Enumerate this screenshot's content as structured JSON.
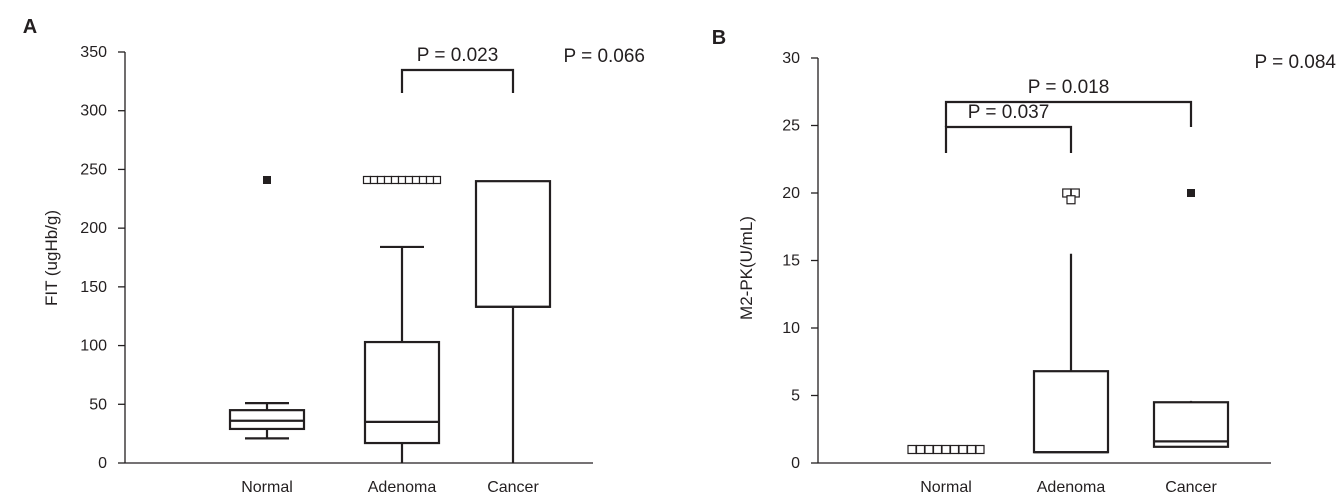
{
  "chart_data": [
    {
      "type": "boxplot",
      "panel_label": "A",
      "ylabel": "FIT (ugHb/g)",
      "ylim": [
        0,
        350
      ],
      "yticks": [
        0,
        50,
        100,
        150,
        200,
        250,
        300,
        350
      ],
      "categories": [
        "Normal",
        "Adenoma",
        "Cancer"
      ],
      "boxes": [
        {
          "category": "Normal",
          "min": 21,
          "q1": 29,
          "median": 36,
          "q3": 45,
          "max": 51
        },
        {
          "category": "Adenoma",
          "min": 0,
          "q1": 17,
          "median": 35,
          "q3": 103,
          "max": 184
        },
        {
          "category": "Cancer",
          "min": 0,
          "q1": 133,
          "median": 133,
          "q3": 240,
          "max": 240
        }
      ],
      "outliers": [
        {
          "category": "Normal",
          "value": 241,
          "marker": "filled-square",
          "count": 1
        },
        {
          "category": "Adenoma",
          "value": 241,
          "marker": "open-square",
          "count": 11
        }
      ],
      "annotations": {
        "overall": "P = 0.066",
        "comparisons": [
          {
            "from": "Adenoma",
            "to": "Cancer",
            "text": "P = 0.023"
          }
        ]
      }
    },
    {
      "type": "boxplot",
      "panel_label": "B",
      "ylabel": "M2-PK(U/mL)",
      "ylim": [
        0,
        30
      ],
      "yticks": [
        0,
        5,
        10,
        15,
        20,
        25,
        30
      ],
      "categories": [
        "Normal",
        "Adenoma",
        "Cancer"
      ],
      "boxes": [
        {
          "category": "Normal",
          "min": 1,
          "q1": 1,
          "median": 1,
          "q3": 1,
          "max": 1
        },
        {
          "category": "Adenoma",
          "min": 0.8,
          "q1": 0.8,
          "median": 0.8,
          "q3": 6.8,
          "max": 15.5
        },
        {
          "category": "Cancer",
          "min": 1.2,
          "q1": 1.2,
          "median": 1.6,
          "q3": 4.5,
          "max": 4.6
        }
      ],
      "outliers": [
        {
          "category": "Normal",
          "value": 1,
          "marker": "open-square",
          "count": 9
        },
        {
          "category": "Adenoma",
          "value": 20,
          "marker": "open-square",
          "count": 2
        },
        {
          "category": "Adenoma",
          "value": 19.5,
          "marker": "open-square",
          "count": 1
        },
        {
          "category": "Cancer",
          "value": 20,
          "marker": "filled-square",
          "count": 1
        }
      ],
      "annotations": {
        "overall": "P = 0.084",
        "comparisons": [
          {
            "from": "Normal",
            "to": "Adenoma",
            "text": "P = 0.037"
          },
          {
            "from": "Normal",
            "to": "Cancer",
            "text": "P = 0.018"
          }
        ]
      }
    }
  ]
}
